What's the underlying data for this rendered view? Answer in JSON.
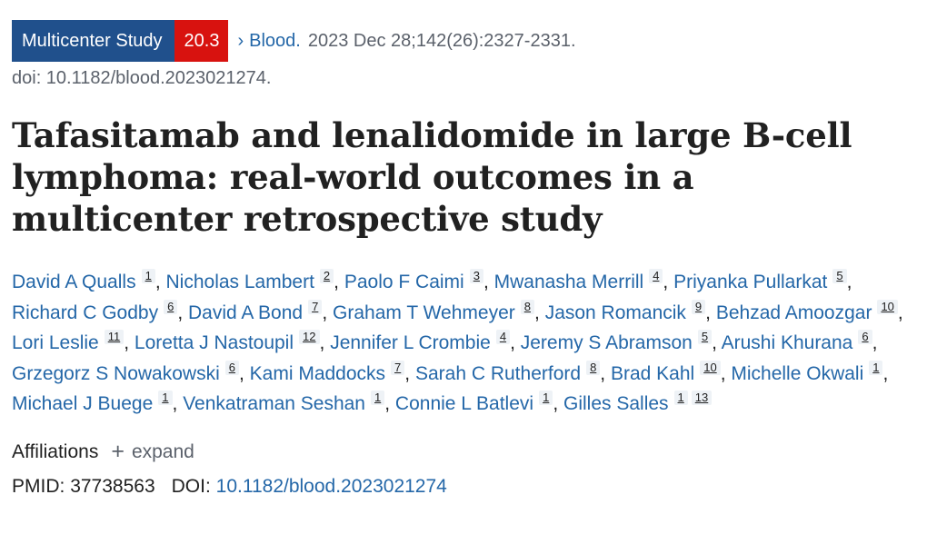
{
  "header": {
    "publication_type": "Multicenter Study",
    "score": "20.3",
    "chevron": "›",
    "journal": "Blood.",
    "citation": "2023 Dec 28;142(26):2327-2331.",
    "doi_line": "doi: 10.1182/blood.2023021274."
  },
  "title": "Tafasitamab and lenalidomide in large B-cell lymphoma: real-world outcomes in a multicenter retrospective study",
  "authors": [
    {
      "name": "David A Qualls",
      "aff": [
        "1"
      ]
    },
    {
      "name": "Nicholas Lambert",
      "aff": [
        "2"
      ]
    },
    {
      "name": "Paolo F Caimi",
      "aff": [
        "3"
      ]
    },
    {
      "name": "Mwanasha Merrill",
      "aff": [
        "4"
      ]
    },
    {
      "name": "Priyanka Pullarkat",
      "aff": [
        "5"
      ]
    },
    {
      "name": "Richard C Godby",
      "aff": [
        "6"
      ]
    },
    {
      "name": "David A Bond",
      "aff": [
        "7"
      ]
    },
    {
      "name": "Graham T Wehmeyer",
      "aff": [
        "8"
      ]
    },
    {
      "name": "Jason Romancik",
      "aff": [
        "9"
      ]
    },
    {
      "name": "Behzad Amoozgar",
      "aff": [
        "10"
      ]
    },
    {
      "name": "Lori Leslie",
      "aff": [
        "11"
      ]
    },
    {
      "name": "Loretta J Nastoupil",
      "aff": [
        "12"
      ]
    },
    {
      "name": "Jennifer L Crombie",
      "aff": [
        "4"
      ]
    },
    {
      "name": "Jeremy S Abramson",
      "aff": [
        "5"
      ]
    },
    {
      "name": "Arushi Khurana",
      "aff": [
        "6"
      ]
    },
    {
      "name": "Grzegorz S Nowakowski",
      "aff": [
        "6"
      ]
    },
    {
      "name": "Kami Maddocks",
      "aff": [
        "7"
      ]
    },
    {
      "name": "Sarah C Rutherford",
      "aff": [
        "8"
      ]
    },
    {
      "name": "Brad Kahl",
      "aff": [
        "10"
      ]
    },
    {
      "name": "Michelle Okwali",
      "aff": [
        "1"
      ]
    },
    {
      "name": "Michael J Buege",
      "aff": [
        "1"
      ]
    },
    {
      "name": "Venkatraman Seshan",
      "aff": [
        "1"
      ]
    },
    {
      "name": "Connie L Batlevi",
      "aff": [
        "1"
      ]
    },
    {
      "name": "Gilles Salles",
      "aff": [
        "1",
        "13"
      ]
    }
  ],
  "affiliations": {
    "label": "Affiliations",
    "expand_icon": "+",
    "expand_label": "expand"
  },
  "ids": {
    "pmid_label": "PMID:",
    "pmid": "37738563",
    "doi_label": "DOI:",
    "doi": "10.1182/blood.2023021274"
  },
  "colors": {
    "badge_type": "#20508c",
    "badge_score": "#d8120f",
    "link": "#2467a8"
  }
}
